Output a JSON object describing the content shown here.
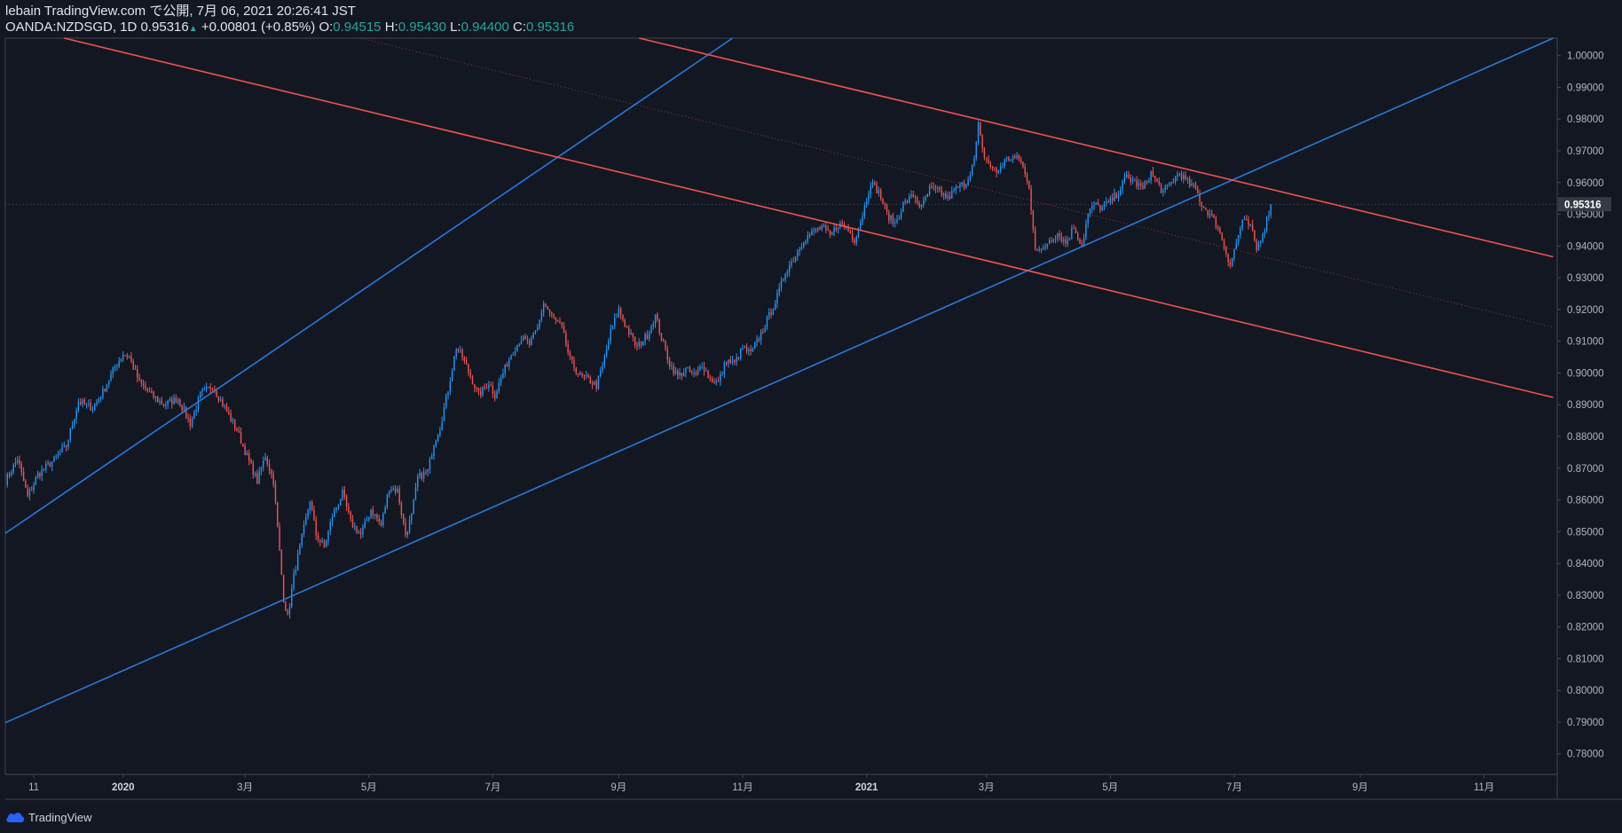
{
  "header": {
    "line1": "lebain TradingView.com で公開, 7月 06, 2021 20:26:41 JST",
    "symbol": "OANDA:NZDSGD, 1D 0.95316",
    "change_arrow": "▲",
    "change": "+0.00801 (+0.85%)",
    "o_label": "O:",
    "o_value": "0.94515",
    "h_label": "H:",
    "h_value": "0.95430",
    "l_label": "L:",
    "l_value": "0.94400",
    "c_label": "C:",
    "c_value": "0.95316"
  },
  "footer": {
    "brand": "TradingView"
  },
  "colors": {
    "background": "#131722",
    "up": "#2196f3",
    "down": "#ef5350",
    "channel_up": "#2879d8",
    "channel_down": "#ef5350",
    "axis_text": "#b2b5be",
    "price_tag": "#363a45"
  },
  "chart_data": {
    "type": "candlestick",
    "symbol": "OANDA:NZDSGD",
    "interval": "1D",
    "last_price": "0.95316",
    "ylim": [
      0.7735,
      1.0055
    ],
    "y_ticks": [
      "1.00000",
      "0.99000",
      "0.98000",
      "0.97000",
      "0.96000",
      "0.95000",
      "0.94000",
      "0.93000",
      "0.92000",
      "0.91000",
      "0.90000",
      "0.89000",
      "0.88000",
      "0.87000",
      "0.86000",
      "0.85000",
      "0.84000",
      "0.83000",
      "0.82000",
      "0.81000",
      "0.80000",
      "0.79000",
      "0.78000"
    ],
    "y_tick_values": [
      1.0,
      0.99,
      0.98,
      0.97,
      0.96,
      0.95,
      0.94,
      0.93,
      0.92,
      0.91,
      0.9,
      0.89,
      0.88,
      0.87,
      0.86,
      0.85,
      0.84,
      0.83,
      0.82,
      0.81,
      0.8,
      0.79,
      0.78
    ],
    "x_range_days": [
      -58,
      706
    ],
    "x_ticks": [
      {
        "label": "11",
        "day": -44
      },
      {
        "label": "2020",
        "day": 0
      },
      {
        "label": "3月",
        "day": 60
      },
      {
        "label": "5月",
        "day": 121
      },
      {
        "label": "7月",
        "day": 182
      },
      {
        "label": "9月",
        "day": 244
      },
      {
        "label": "11月",
        "day": 305
      },
      {
        "label": "2021",
        "day": 366
      },
      {
        "label": "3月",
        "day": 425
      },
      {
        "label": "5月",
        "day": 486
      },
      {
        "label": "7月",
        "day": 547
      },
      {
        "label": "9月",
        "day": 609
      },
      {
        "label": "11月",
        "day": 670
      }
    ],
    "price_anchors": [
      [
        -58,
        0.866
      ],
      [
        -52,
        0.873
      ],
      [
        -47,
        0.861
      ],
      [
        -42,
        0.868
      ],
      [
        -35,
        0.872
      ],
      [
        -28,
        0.877
      ],
      [
        -22,
        0.891
      ],
      [
        -15,
        0.889
      ],
      [
        -10,
        0.894
      ],
      [
        -4,
        0.902
      ],
      [
        0,
        0.906
      ],
      [
        3,
        0.905
      ],
      [
        8,
        0.897
      ],
      [
        14,
        0.893
      ],
      [
        20,
        0.89
      ],
      [
        27,
        0.892
      ],
      [
        33,
        0.884
      ],
      [
        38,
        0.893
      ],
      [
        44,
        0.896
      ],
      [
        50,
        0.889
      ],
      [
        56,
        0.882
      ],
      [
        62,
        0.872
      ],
      [
        66,
        0.866
      ],
      [
        70,
        0.874
      ],
      [
        74,
        0.866
      ],
      [
        79,
        0.829
      ],
      [
        81,
        0.823
      ],
      [
        84,
        0.836
      ],
      [
        88,
        0.848
      ],
      [
        92,
        0.86
      ],
      [
        95,
        0.849
      ],
      [
        99,
        0.845
      ],
      [
        103,
        0.855
      ],
      [
        108,
        0.862
      ],
      [
        112,
        0.853
      ],
      [
        117,
        0.849
      ],
      [
        122,
        0.857
      ],
      [
        127,
        0.852
      ],
      [
        131,
        0.864
      ],
      [
        135,
        0.863
      ],
      [
        139,
        0.849
      ],
      [
        142,
        0.855
      ],
      [
        145,
        0.867
      ],
      [
        150,
        0.869
      ],
      [
        153,
        0.878
      ],
      [
        156,
        0.883
      ],
      [
        160,
        0.895
      ],
      [
        164,
        0.908
      ],
      [
        167,
        0.905
      ],
      [
        171,
        0.899
      ],
      [
        175,
        0.893
      ],
      [
        180,
        0.897
      ],
      [
        183,
        0.893
      ],
      [
        187,
        0.9
      ],
      [
        191,
        0.906
      ],
      [
        196,
        0.911
      ],
      [
        200,
        0.909
      ],
      [
        204,
        0.914
      ],
      [
        207,
        0.922
      ],
      [
        211,
        0.918
      ],
      [
        216,
        0.914
      ],
      [
        220,
        0.904
      ],
      [
        225,
        0.899
      ],
      [
        229,
        0.898
      ],
      [
        233,
        0.896
      ],
      [
        236,
        0.902
      ],
      [
        240,
        0.913
      ],
      [
        244,
        0.92
      ],
      [
        248,
        0.914
      ],
      [
        253,
        0.908
      ],
      [
        258,
        0.912
      ],
      [
        262,
        0.918
      ],
      [
        266,
        0.909
      ],
      [
        269,
        0.903
      ],
      [
        273,
        0.899
      ],
      [
        277,
        0.901
      ],
      [
        282,
        0.899
      ],
      [
        285,
        0.903
      ],
      [
        289,
        0.898
      ],
      [
        293,
        0.897
      ],
      [
        297,
        0.904
      ],
      [
        301,
        0.903
      ],
      [
        305,
        0.908
      ],
      [
        309,
        0.906
      ],
      [
        313,
        0.911
      ],
      [
        318,
        0.918
      ],
      [
        322,
        0.924
      ],
      [
        326,
        0.932
      ],
      [
        330,
        0.936
      ],
      [
        335,
        0.942
      ],
      [
        339,
        0.944
      ],
      [
        344,
        0.946
      ],
      [
        348,
        0.943
      ],
      [
        352,
        0.947
      ],
      [
        356,
        0.946
      ],
      [
        360,
        0.942
      ],
      [
        364,
        0.95
      ],
      [
        368,
        0.96
      ],
      [
        372,
        0.957
      ],
      [
        376,
        0.95
      ],
      [
        380,
        0.947
      ],
      [
        384,
        0.953
      ],
      [
        389,
        0.956
      ],
      [
        393,
        0.952
      ],
      [
        397,
        0.958
      ],
      [
        402,
        0.957
      ],
      [
        406,
        0.955
      ],
      [
        410,
        0.958
      ],
      [
        415,
        0.96
      ],
      [
        419,
        0.967
      ],
      [
        421,
        0.978
      ],
      [
        423,
        0.97
      ],
      [
        426,
        0.966
      ],
      [
        430,
        0.963
      ],
      [
        434,
        0.967
      ],
      [
        438,
        0.968
      ],
      [
        442,
        0.967
      ],
      [
        446,
        0.958
      ],
      [
        449,
        0.94
      ],
      [
        452,
        0.938
      ],
      [
        456,
        0.942
      ],
      [
        460,
        0.944
      ],
      [
        464,
        0.941
      ],
      [
        468,
        0.946
      ],
      [
        472,
        0.94
      ],
      [
        475,
        0.95
      ],
      [
        478,
        0.953
      ],
      [
        482,
        0.952
      ],
      [
        486,
        0.954
      ],
      [
        490,
        0.957
      ],
      [
        494,
        0.962
      ],
      [
        498,
        0.96
      ],
      [
        502,
        0.958
      ],
      [
        506,
        0.963
      ],
      [
        509,
        0.96
      ],
      [
        512,
        0.957
      ],
      [
        516,
        0.96
      ],
      [
        520,
        0.963
      ],
      [
        524,
        0.96
      ],
      [
        528,
        0.958
      ],
      [
        531,
        0.953
      ],
      [
        535,
        0.95
      ],
      [
        539,
        0.946
      ],
      [
        542,
        0.94
      ],
      [
        545,
        0.934
      ],
      [
        548,
        0.941
      ],
      [
        551,
        0.948
      ],
      [
        555,
        0.946
      ],
      [
        558,
        0.939
      ],
      [
        562,
        0.946
      ],
      [
        565,
        0.953
      ]
    ],
    "channels": [
      {
        "name": "ascending-channel-upper",
        "color": "#2879d8",
        "p1": {
          "day": -58,
          "price": 0.8495
        },
        "p2": {
          "day": 300,
          "price": 1.0055
        }
      },
      {
        "name": "ascending-channel-lower",
        "color": "#2879d8",
        "p1": {
          "day": -58,
          "price": 0.7898
        },
        "p2": {
          "day": 704,
          "price": 1.0055
        }
      },
      {
        "name": "descending-channel-upper",
        "color": "#ef5350",
        "p1": {
          "day": 254,
          "price": 1.0055
        },
        "p2": {
          "day": 704,
          "price": 0.9366
        }
      },
      {
        "name": "descending-channel-lower",
        "color": "#ef5350",
        "p1": {
          "day": -29,
          "price": 1.0055
        },
        "p2": {
          "day": 704,
          "price": 0.8923
        }
      },
      {
        "name": "descending-channel-median",
        "color": "#ef5350",
        "dotted": true,
        "p1": {
          "day": 117,
          "price": 1.0055
        },
        "p2": {
          "day": 704,
          "price": 0.9145
        }
      }
    ]
  }
}
